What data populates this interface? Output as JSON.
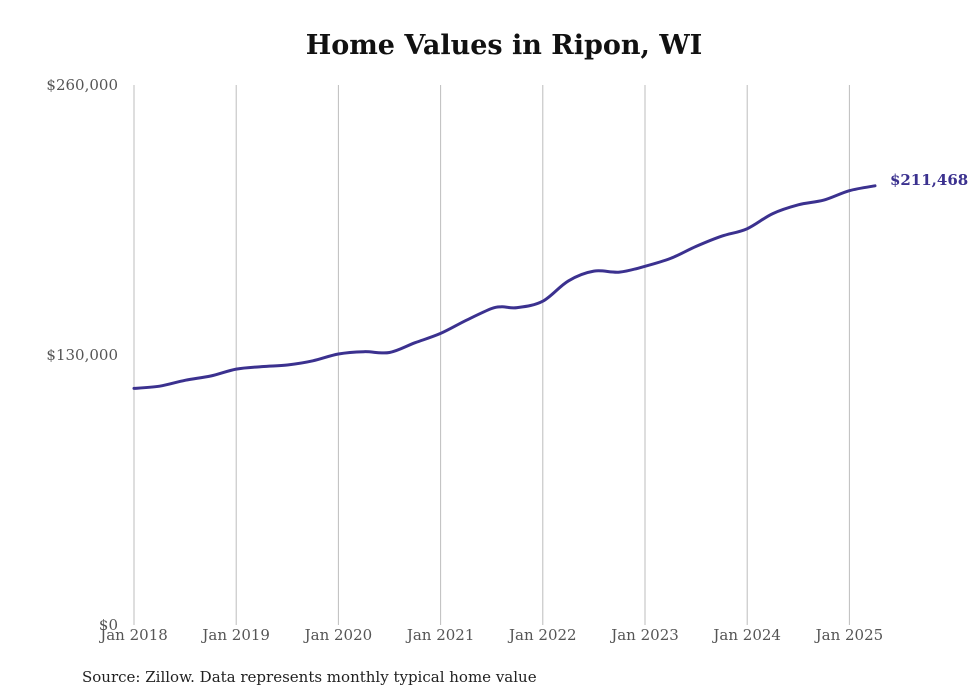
{
  "chart_data": {
    "type": "line",
    "title": "Home Values in Ripon, WI",
    "source": "Source: Zillow. Data represents monthly typical home value",
    "color": "#3b318f",
    "grid": "vertical",
    "ylim": [
      0,
      260000
    ],
    "y_ticks": [
      {
        "value": 0,
        "label": "$0"
      },
      {
        "value": 130000,
        "label": "$130,000"
      },
      {
        "value": 260000,
        "label": "$260,000"
      }
    ],
    "x_ticks": [
      "Jan 2018",
      "Jan 2019",
      "Jan 2020",
      "Jan 2021",
      "Jan 2022",
      "Jan 2023",
      "Jan 2024",
      "Jan 2025"
    ],
    "end_label": "$211,468",
    "series": [
      {
        "x": [
          2018.0,
          2018.25,
          2018.5,
          2018.75,
          2019.0,
          2019.25,
          2019.5,
          2019.75,
          2020.0,
          2020.25,
          2020.5,
          2020.75,
          2021.0,
          2021.25,
          2021.5,
          2021.6,
          2021.75,
          2022.0,
          2022.25,
          2022.5,
          2022.75,
          2023.0,
          2023.25,
          2023.5,
          2023.75,
          2024.0,
          2024.25,
          2024.5,
          2024.75,
          2025.0,
          2025.25
        ],
        "y": [
          113900,
          115000,
          117800,
          119900,
          123200,
          124400,
          125200,
          127200,
          130500,
          131600,
          131200,
          135900,
          140400,
          146700,
          152400,
          153200,
          152800,
          155900,
          165700,
          170400,
          169900,
          172700,
          176500,
          182300,
          187200,
          190800,
          198100,
          202300,
          204600,
          209100,
          211468
        ]
      }
    ]
  }
}
